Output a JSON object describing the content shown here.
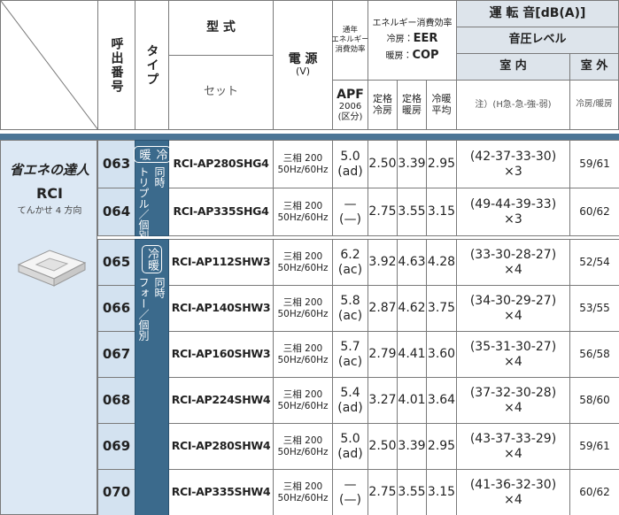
{
  "header": {
    "call_number": "呼出番号",
    "type": "タイプ",
    "model": "型 式",
    "set": "セット",
    "power": "電 源",
    "power_unit": "(V)",
    "apf_title": [
      "通年",
      "エネルギー",
      "消費効率"
    ],
    "apf": "APF",
    "apf_year": "2006",
    "apf_class": "(区分)",
    "efficiency_title": "エネルギー消費効率",
    "eer": [
      "冷房：",
      "EER"
    ],
    "cop": [
      "暖房：",
      "COP"
    ],
    "rated_cooling": [
      "定格",
      "冷房"
    ],
    "rated_heating": [
      "定格",
      "暖房"
    ],
    "average": [
      "冷暖",
      "平均"
    ],
    "noise": "運 転 音[dB(A)]",
    "sound_pressure": "音圧レベル",
    "indoor": "室 内",
    "outdoor": "室 外",
    "indoor_note": "注）(H急-急-強-弱)",
    "outdoor_note": "冷房/暖房"
  },
  "brand": {
    "logo": "省エネの達人",
    "series": "RCI",
    "kind": "てんかせ 4 方向"
  },
  "groups": [
    {
      "badge": "冷暖",
      "lines": [
        "同時",
        "トリプル／個別"
      ]
    },
    {
      "badge": "冷暖",
      "lines": [
        "同時",
        "フォー／個別"
      ]
    }
  ],
  "rows": [
    {
      "number": "063",
      "model": "RCI-AP280SHG4",
      "power": [
        "三相 200",
        "50Hz/60Hz"
      ],
      "apf": [
        "5.0",
        "(ad)"
      ],
      "cooling": "2.50",
      "heating": "3.39",
      "average": "2.95",
      "indoor": [
        "(42-37-33-30)",
        "×3"
      ],
      "outdoor": "59/61"
    },
    {
      "number": "064",
      "model": "RCI-AP335SHG4",
      "power": [
        "三相 200",
        "50Hz/60Hz"
      ],
      "apf": [
        "—",
        "(—)"
      ],
      "cooling": "2.75",
      "heating": "3.55",
      "average": "3.15",
      "indoor": [
        "(49-44-39-33)",
        "×3"
      ],
      "outdoor": "60/62"
    },
    {
      "number": "065",
      "model": "RCI-AP112SHW3",
      "power": [
        "三相 200",
        "50Hz/60Hz"
      ],
      "apf": [
        "6.2",
        "(ac)"
      ],
      "cooling": "3.92",
      "heating": "4.63",
      "average": "4.28",
      "indoor": [
        "(33-30-28-27)",
        "×4"
      ],
      "outdoor": "52/54"
    },
    {
      "number": "066",
      "model": "RCI-AP140SHW3",
      "power": [
        "三相 200",
        "50Hz/60Hz"
      ],
      "apf": [
        "5.8",
        "(ac)"
      ],
      "cooling": "2.87",
      "heating": "4.62",
      "average": "3.75",
      "indoor": [
        "(34-30-29-27)",
        "×4"
      ],
      "outdoor": "53/55"
    },
    {
      "number": "067",
      "model": "RCI-AP160SHW3",
      "power": [
        "三相 200",
        "50Hz/60Hz"
      ],
      "apf": [
        "5.7",
        "(ac)"
      ],
      "cooling": "2.79",
      "heating": "4.41",
      "average": "3.60",
      "indoor": [
        "(35-31-30-27)",
        "×4"
      ],
      "outdoor": "56/58"
    },
    {
      "number": "068",
      "model": "RCI-AP224SHW4",
      "power": [
        "三相 200",
        "50Hz/60Hz"
      ],
      "apf": [
        "5.4",
        "(ad)"
      ],
      "cooling": "3.27",
      "heating": "4.01",
      "average": "3.64",
      "indoor": [
        "(37-32-30-28)",
        "×4"
      ],
      "outdoor": "58/60"
    },
    {
      "number": "069",
      "model": "RCI-AP280SHW4",
      "power": [
        "三相 200",
        "50Hz/60Hz"
      ],
      "apf": [
        "5.0",
        "(ad)"
      ],
      "cooling": "2.50",
      "heating": "3.39",
      "average": "2.95",
      "indoor": [
        "(43-37-33-29)",
        "×4"
      ],
      "outdoor": "59/61"
    },
    {
      "number": "070",
      "model": "RCI-AP335SHW4",
      "power": [
        "三相 200",
        "50Hz/60Hz"
      ],
      "apf": [
        "—",
        "(—)"
      ],
      "cooling": "2.75",
      "heating": "3.55",
      "average": "3.15",
      "indoor": [
        "(41-36-32-30)",
        "×4"
      ],
      "outdoor": "60/62"
    }
  ]
}
